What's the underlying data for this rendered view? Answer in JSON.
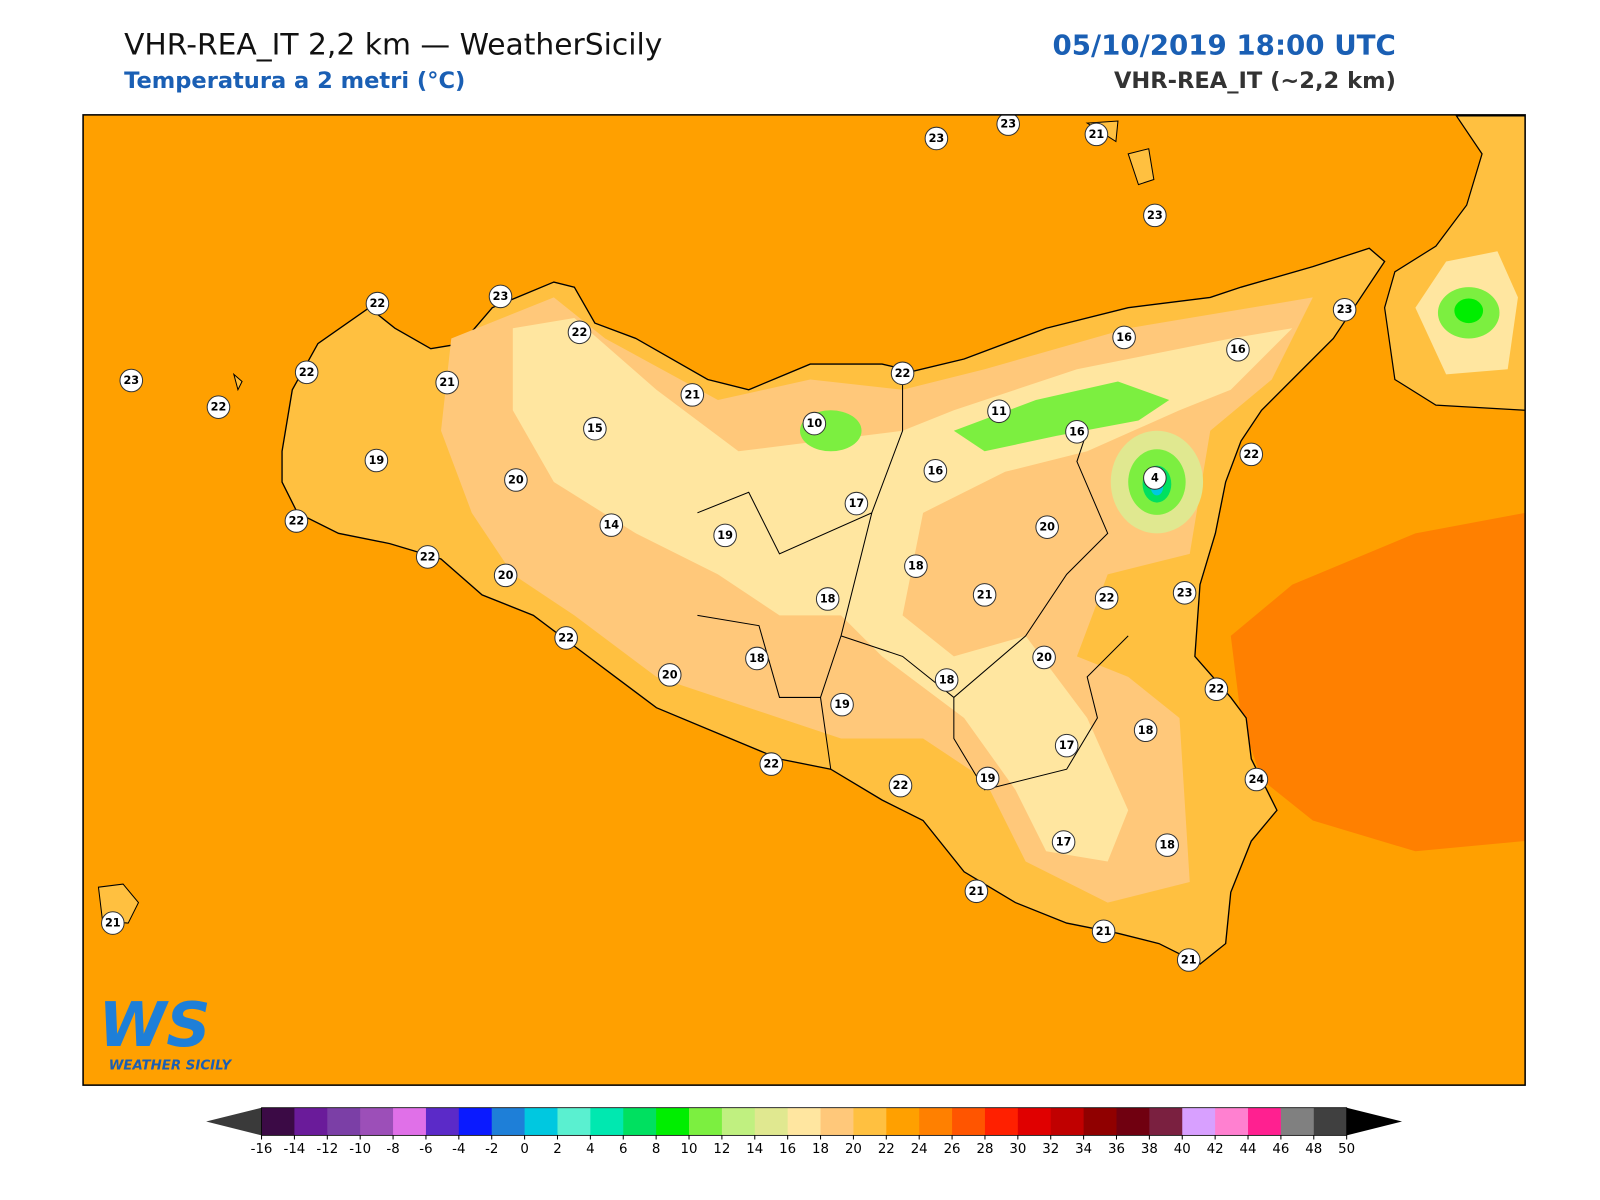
{
  "header": {
    "title": "VHR-REA_IT 2,2 km — WeatherSicily",
    "subtitle": "Temperatura a 2 metri (°C)",
    "datetime": "05/10/2019 18:00 UTC",
    "model": "VHR-REA_IT (~2,2 km)"
  },
  "map": {
    "sea_color": "#ffa000",
    "stations": [
      23,
      23,
      21,
      23,
      23,
      16,
      16,
      22,
      23,
      22,
      22,
      21,
      23,
      22,
      21,
      22,
      10,
      11,
      16,
      15,
      19,
      20,
      16,
      4,
      22,
      17,
      14,
      19,
      20,
      22,
      22,
      20,
      18,
      21,
      22,
      23,
      18,
      22,
      20,
      18,
      20,
      18,
      22,
      19,
      17,
      18,
      22,
      22,
      19,
      24,
      17,
      18,
      21,
      21,
      21,
      21
    ]
  },
  "logo": {
    "mark": "WS",
    "name": "WEATHER SICILY"
  },
  "colorbar": {
    "ticks": [
      -16,
      -14,
      -12,
      -10,
      -8,
      -6,
      -4,
      -2,
      0,
      2,
      4,
      6,
      8,
      10,
      12,
      14,
      16,
      18,
      20,
      22,
      24,
      26,
      28,
      30,
      32,
      34,
      36,
      38,
      40,
      42,
      44,
      46,
      48,
      50
    ],
    "colors": [
      "#3b0a45",
      "#6a1b9a",
      "#7b3fa6",
      "#9c4fb8",
      "#e070e8",
      "#5b2ac8",
      "#0a1aff",
      "#1e7fd8",
      "#00c8e0",
      "#5af0d0",
      "#00e8b0",
      "#00e060",
      "#00ee00",
      "#7cef40",
      "#c0f080",
      "#e0e890",
      "#ffe6a0",
      "#ffc87a",
      "#ffc040",
      "#ffa000",
      "#ff8000",
      "#ff5500",
      "#ff2000",
      "#e00000",
      "#c00000",
      "#900000",
      "#700010",
      "#7a2040",
      "#d8a0ff",
      "#ff80d0",
      "#ff2090",
      "#808080",
      "#404040"
    ],
    "under_color": "#3a3a3a",
    "over_color": "#000000"
  }
}
